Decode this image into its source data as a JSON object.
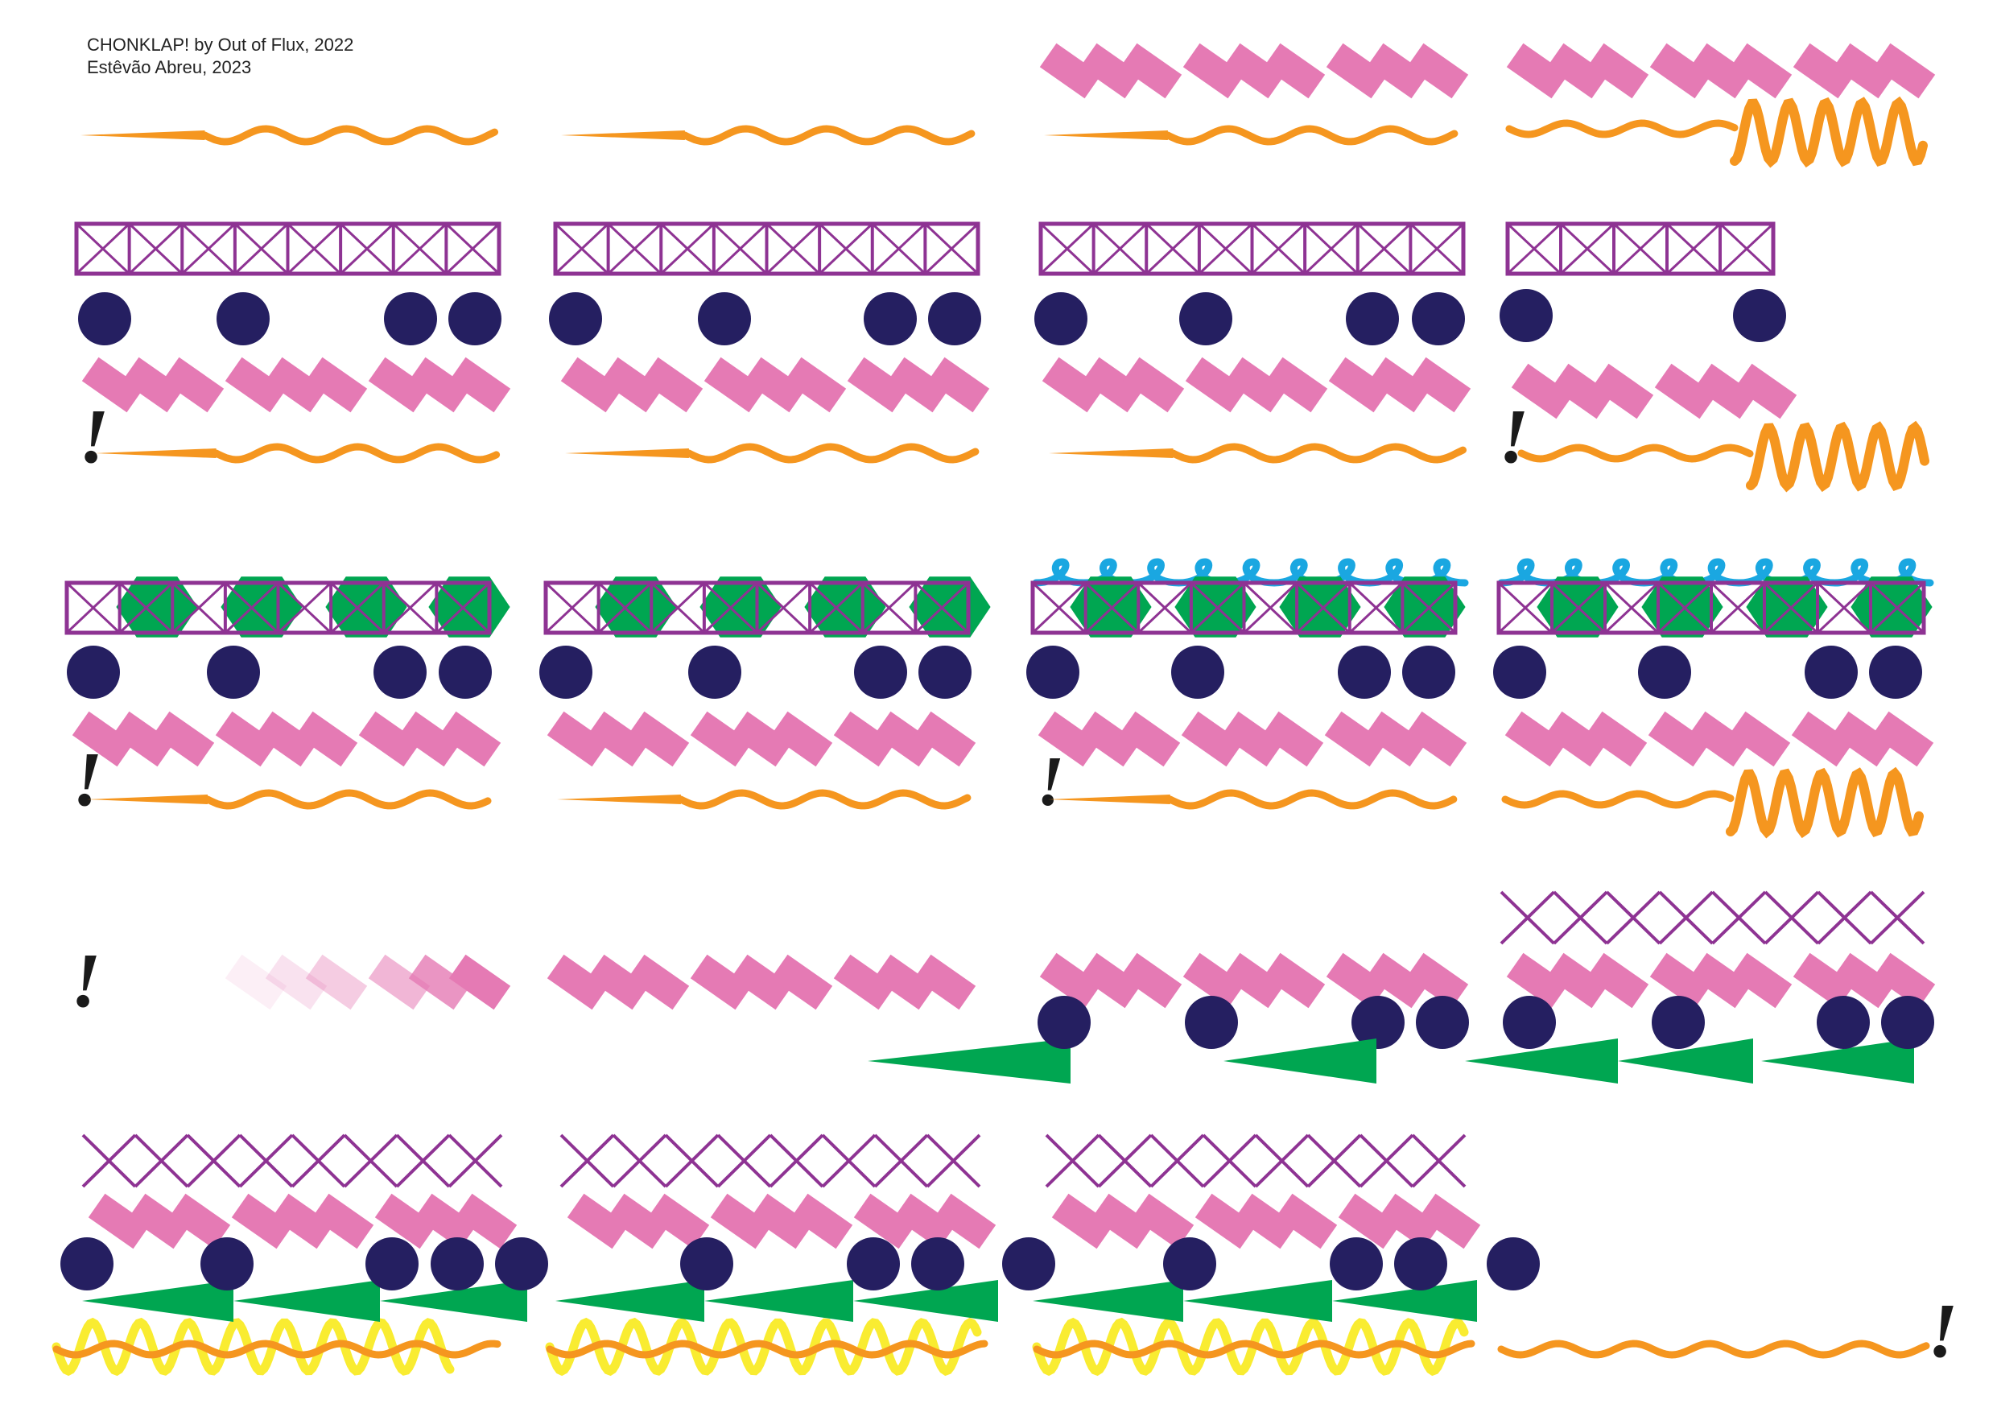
{
  "credits": {
    "line1": "CHONKLAP! by Out of Flux, 2022",
    "line2": "Estêvão Abreu, 2023"
  },
  "palette": {
    "pink": "#e57ab4",
    "orange": "#f5961f",
    "purple": "#8e3393",
    "navy": "#251f61",
    "green": "#00a651",
    "blue": "#1aa7e1",
    "yellow": "#f9ec31",
    "black": "#1a1a1a"
  },
  "glyph": "!",
  "icons": [
    "pink-rect-trio-icon",
    "orange-wave-icon",
    "purple-lattice-icon",
    "navy-dot-icon",
    "green-hexagon-icon",
    "blue-loop-icon",
    "green-wedge-icon",
    "yellow-zigzag-icon",
    "exclamation-icon"
  ]
}
